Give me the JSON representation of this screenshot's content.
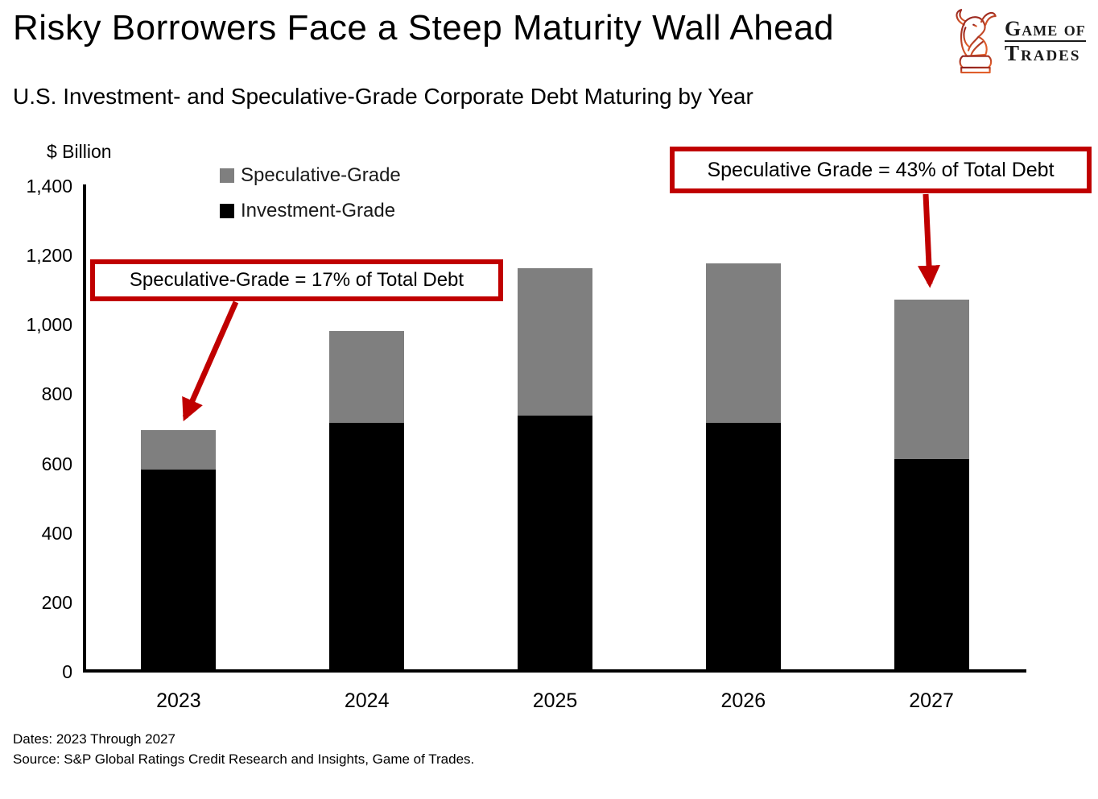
{
  "header": {
    "title": "Risky Borrowers Face a Steep Maturity Wall Ahead",
    "subtitle": "U.S. Investment- and Speculative-Grade Corporate Debt Maturing by Year",
    "logo_line1": "Game of",
    "logo_line2": "Trades"
  },
  "chart_data": {
    "type": "bar",
    "stacked": true,
    "title": "U.S. Investment- and Speculative-Grade Corporate Debt Maturing by Year",
    "ylabel": "$ Billion",
    "xlabel": "",
    "categories": [
      "2023",
      "2024",
      "2025",
      "2026",
      "2027"
    ],
    "series": [
      {
        "name": "Investment-Grade",
        "color": "#000000",
        "values": [
          580,
          715,
          735,
          715,
          610
        ]
      },
      {
        "name": "Speculative-Grade",
        "color": "#7f7f7f",
        "values": [
          115,
          265,
          425,
          460,
          460
        ]
      }
    ],
    "totals": [
      695,
      980,
      1160,
      1175,
      1070
    ],
    "ylim": [
      0,
      1400
    ],
    "ytick_step": 200,
    "yticks": [
      "0",
      "200",
      "400",
      "600",
      "800",
      "1,000",
      "1,200",
      "1,400"
    ],
    "legend_position": "top-left-inside",
    "legend_order": [
      "Speculative-Grade",
      "Investment-Grade"
    ],
    "grid": false
  },
  "annotations": {
    "left": {
      "text": "Speculative-Grade = 17% of Total Debt",
      "target_category": "2023"
    },
    "right": {
      "text": "Speculative Grade = 43% of Total Debt",
      "target_category": "2027"
    }
  },
  "colors": {
    "annotation_red": "#c00000",
    "investment_grade": "#000000",
    "speculative_grade": "#7f7f7f",
    "axis": "#000000",
    "logo_red_dark": "#8c1d1d",
    "logo_red_light": "#e2602c"
  },
  "footer": {
    "dates": "Dates: 2023 Through 2027",
    "source": "Source: S&P Global Ratings Credit Research and Insights, Game of Trades."
  }
}
